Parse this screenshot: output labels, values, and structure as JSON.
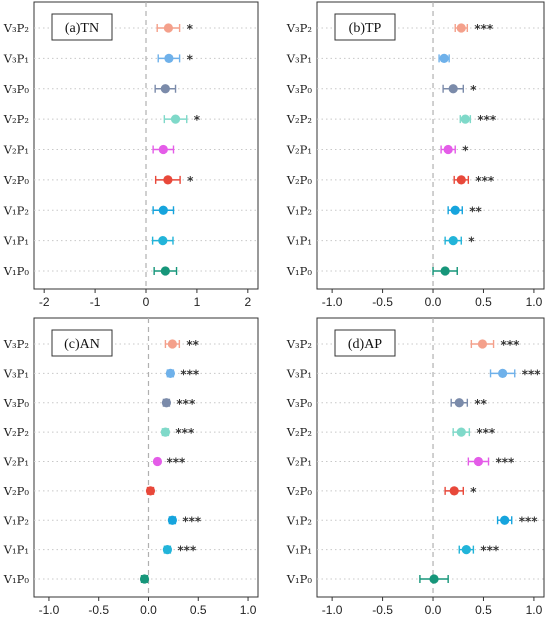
{
  "chart_data": [
    {
      "type": "scatter",
      "title": "(a)TN",
      "categories": [
        "V₃P₂",
        "V₃P₁",
        "V₃P₀",
        "V₂P₂",
        "V₂P₁",
        "V₂P₀",
        "V₁P₂",
        "V₁P₁",
        "V₁P₀"
      ],
      "xlim": [
        -2.2,
        2.2
      ],
      "xticks": [
        "-2",
        "-1",
        "0",
        "1",
        "2"
      ],
      "xtick_values": [
        -2,
        -1,
        0,
        1,
        2
      ],
      "values": [
        0.44,
        0.45,
        0.38,
        0.58,
        0.34,
        0.43,
        0.34,
        0.33,
        0.38
      ],
      "error": [
        0.22,
        0.21,
        0.2,
        0.22,
        0.2,
        0.24,
        0.2,
        0.2,
        0.22
      ],
      "significance": [
        "*",
        "*",
        "",
        "*",
        "",
        "*",
        "",
        "",
        ""
      ],
      "colors": [
        "#F4A08B",
        "#6FB1EA",
        "#7B8BAA",
        "#7FD9C9",
        "#E45CE8",
        "#E8483A",
        "#16A4DD",
        "#22B4D9",
        "#16967A"
      ],
      "grid": "dotted horizontal",
      "reference_line": 0
    },
    {
      "type": "scatter",
      "title": "(b)TP",
      "categories": [
        "V₃P₂",
        "V₃P₁",
        "V₃P₀",
        "V₂P₂",
        "V₂P₁",
        "V₂P₀",
        "V₁P₂",
        "V₁P₁",
        "V₁P₀"
      ],
      "xlim": [
        -1.15,
        1.1
      ],
      "xticks": [
        "-1.0",
        "-0.5",
        "0.0",
        "0.5",
        "1.0"
      ],
      "xtick_values": [
        -1,
        -0.5,
        0,
        0.5,
        1
      ],
      "values": [
        0.28,
        0.11,
        0.2,
        0.32,
        0.15,
        0.28,
        0.22,
        0.2,
        0.12
      ],
      "error": [
        0.06,
        0.05,
        0.1,
        0.05,
        0.07,
        0.07,
        0.07,
        0.08,
        0.12
      ],
      "significance": [
        "***",
        "",
        "*",
        "***",
        "*",
        "***",
        "**",
        "*",
        ""
      ],
      "colors": [
        "#F4A08B",
        "#6FB1EA",
        "#7B8BAA",
        "#7FD9C9",
        "#E45CE8",
        "#E8483A",
        "#16A4DD",
        "#22B4D9",
        "#16967A"
      ],
      "grid": "dotted horizontal",
      "reference_line": 0
    },
    {
      "type": "scatter",
      "title": "(c)AN",
      "categories": [
        "V₃P₂",
        "V₃P₁",
        "V₃P₀",
        "V₂P₂",
        "V₂P₁",
        "V₂P₀",
        "V₁P₂",
        "V₁P₁",
        "V₁P₀"
      ],
      "xlim": [
        -1.15,
        1.1
      ],
      "xticks": [
        "-1.0",
        "-0.5",
        "0.0",
        "0.5",
        "1.0"
      ],
      "xtick_values": [
        -1,
        -0.5,
        0,
        0.5,
        1
      ],
      "values": [
        0.24,
        0.22,
        0.18,
        0.17,
        0.09,
        0.02,
        0.24,
        0.19,
        -0.04
      ],
      "error": [
        0.07,
        0.03,
        0.03,
        0.03,
        0.02,
        0.03,
        0.03,
        0.03,
        0.03
      ],
      "significance": [
        "**",
        "***",
        "***",
        "***",
        "***",
        "",
        "***",
        "***",
        ""
      ],
      "colors": [
        "#F4A08B",
        "#6FB1EA",
        "#7B8BAA",
        "#7FD9C9",
        "#E45CE8",
        "#E8483A",
        "#16A4DD",
        "#22B4D9",
        "#16967A"
      ],
      "grid": "dotted horizontal",
      "reference_line": 0
    },
    {
      "type": "scatter",
      "title": "(d)AP",
      "categories": [
        "V₃P₂",
        "V₃P₁",
        "V₃P₀",
        "V₂P₂",
        "V₂P₁",
        "V₂P₀",
        "V₁P₂",
        "V₁P₁",
        "V₁P₀"
      ],
      "xlim": [
        -1.15,
        1.1
      ],
      "xticks": [
        "-1.0",
        "-0.5",
        "0.0",
        "0.5",
        "1.0"
      ],
      "xtick_values": [
        -1,
        -0.5,
        0,
        0.5,
        1
      ],
      "values": [
        0.49,
        0.69,
        0.26,
        0.28,
        0.45,
        0.21,
        0.71,
        0.33,
        0.01
      ],
      "error": [
        0.11,
        0.12,
        0.08,
        0.08,
        0.1,
        0.09,
        0.07,
        0.07,
        0.14
      ],
      "significance": [
        "***",
        "***",
        "**",
        "***",
        "***",
        "*",
        "***",
        "***",
        ""
      ],
      "colors": [
        "#F4A08B",
        "#6FB1EA",
        "#7B8BAA",
        "#7FD9C9",
        "#E45CE8",
        "#E8483A",
        "#16A4DD",
        "#22B4D9",
        "#16967A"
      ],
      "grid": "dotted horizontal",
      "reference_line": 0
    }
  ]
}
